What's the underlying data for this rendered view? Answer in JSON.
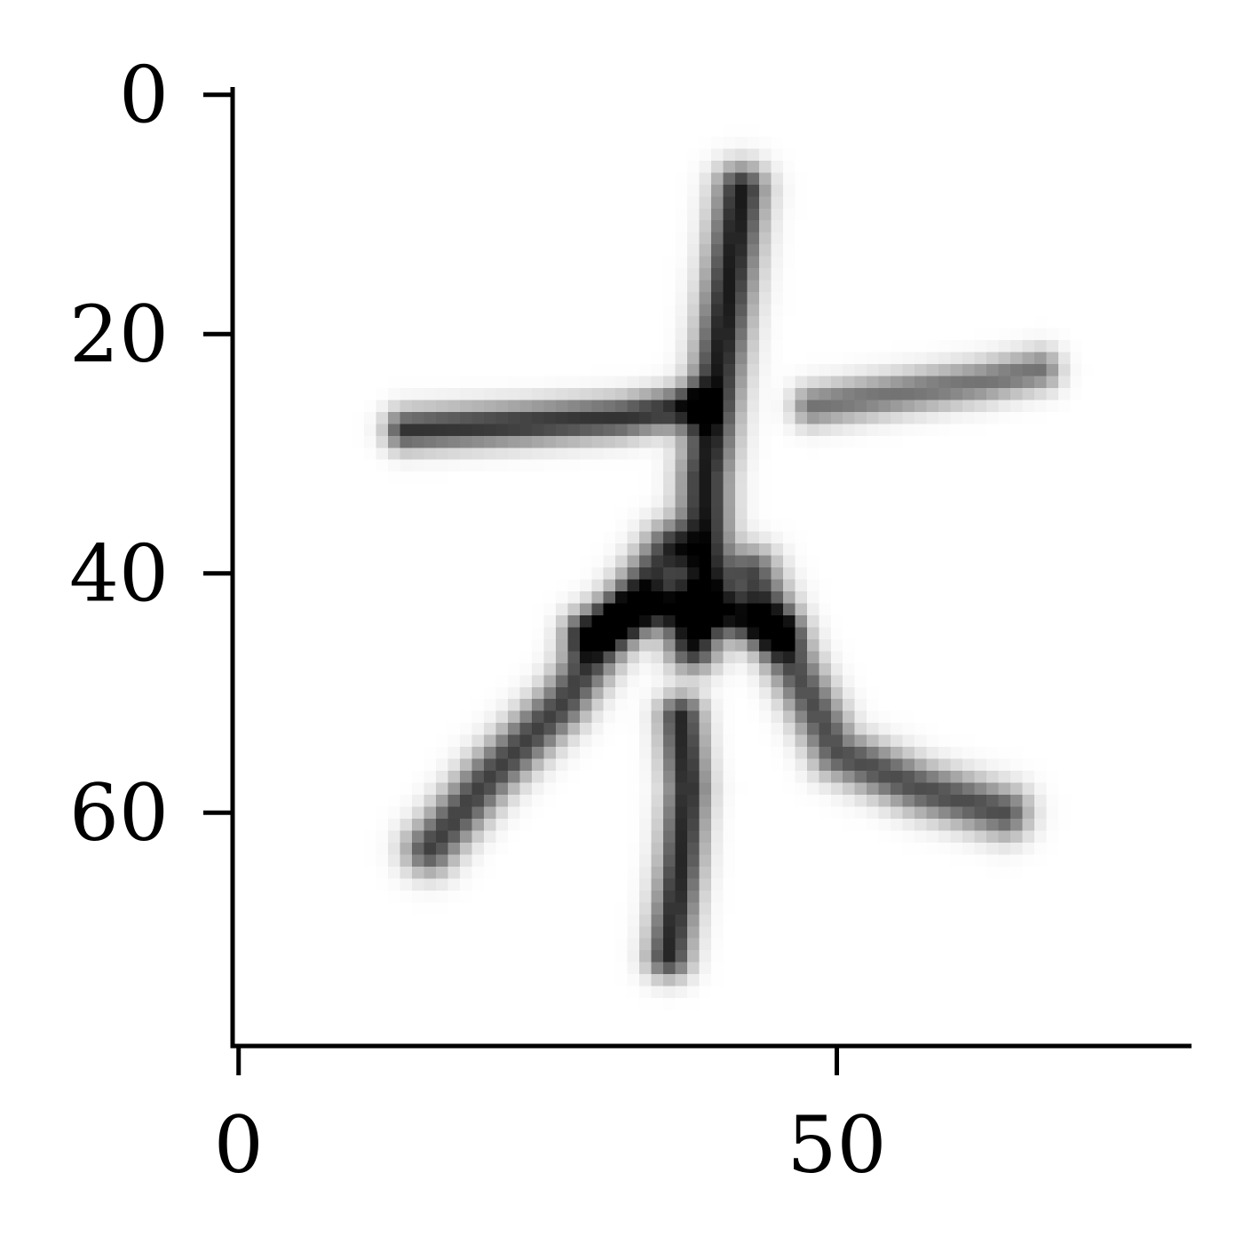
{
  "chart_data": {
    "type": "heatmap",
    "colormap": "gray_r",
    "title": "",
    "xlabel": "",
    "ylabel": "",
    "image_size": [
      80,
      80
    ],
    "xlim": [
      -0.5,
      79.5
    ],
    "ylim": [
      79.5,
      -0.5
    ],
    "x_ticks": [
      0,
      50
    ],
    "x_tick_labels": [
      "0",
      "50"
    ],
    "y_ticks": [
      0,
      20,
      40,
      60
    ],
    "y_tick_labels": [
      "0",
      "20",
      "40",
      "60"
    ],
    "spines": [
      "left",
      "bottom"
    ],
    "grid": false,
    "strokes": [
      {
        "name": "vertical-stroke",
        "points": [
          [
            42,
            8
          ],
          [
            41,
            16
          ],
          [
            40,
            24
          ],
          [
            39,
            32
          ],
          [
            39,
            40
          ],
          [
            38,
            46
          ]
        ],
        "width": 3.0,
        "intensity": 0.9
      },
      {
        "name": "left-horizontal-stroke",
        "points": [
          [
            14,
            28
          ],
          [
            24,
            27.5
          ],
          [
            32,
            27
          ],
          [
            38,
            26
          ]
        ],
        "width": 2.4,
        "intensity": 0.8
      },
      {
        "name": "right-horizontal-stroke",
        "points": [
          [
            48,
            26
          ],
          [
            55,
            25
          ],
          [
            62,
            24
          ],
          [
            67,
            23
          ]
        ],
        "width": 2.4,
        "intensity": 0.55
      },
      {
        "name": "left-diagonal-stroke",
        "points": [
          [
            36,
            38
          ],
          [
            31,
            45
          ],
          [
            27,
            51
          ],
          [
            21,
            57
          ],
          [
            16,
            63
          ]
        ],
        "width": 3.0,
        "intensity": 0.75
      },
      {
        "name": "right-diagonal-stroke",
        "points": [
          [
            43,
            40
          ],
          [
            46,
            47
          ],
          [
            50,
            55
          ],
          [
            57,
            58
          ],
          [
            64,
            60
          ]
        ],
        "width": 3.0,
        "intensity": 0.7
      },
      {
        "name": "center-bottom-stroke",
        "points": [
          [
            37,
            52
          ],
          [
            37.5,
            58
          ],
          [
            37,
            64
          ],
          [
            36,
            72
          ]
        ],
        "width": 2.6,
        "intensity": 0.85
      },
      {
        "name": "middle-loop-stroke",
        "points": [
          [
            29,
            45
          ],
          [
            34,
            43
          ],
          [
            40,
            43
          ],
          [
            45,
            45
          ]
        ],
        "width": 2.6,
        "intensity": 0.75
      }
    ]
  }
}
